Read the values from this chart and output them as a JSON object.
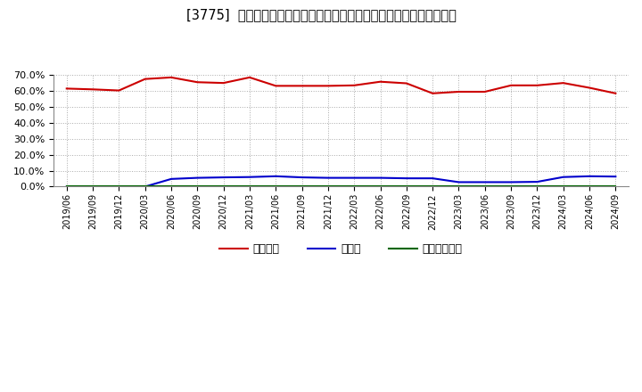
{
  "title": "[3775]  自己資本、のれん、繰延税金資産の総資産に対する比率の推移",
  "x_labels": [
    "2019/06",
    "2019/09",
    "2019/12",
    "2020/03",
    "2020/06",
    "2020/09",
    "2020/12",
    "2021/03",
    "2021/06",
    "2021/09",
    "2021/12",
    "2022/03",
    "2022/06",
    "2022/09",
    "2022/12",
    "2023/03",
    "2023/06",
    "2023/09",
    "2023/12",
    "2024/03",
    "2024/06",
    "2024/09"
  ],
  "jiko_shihon": [
    61.5,
    61.0,
    60.3,
    67.5,
    68.5,
    65.5,
    65.0,
    68.5,
    63.2,
    63.2,
    63.2,
    63.5,
    65.8,
    64.8,
    58.5,
    59.5,
    59.5,
    63.5,
    63.5,
    65.0,
    62.0,
    58.5
  ],
  "noren": [
    0.0,
    0.0,
    0.0,
    0.0,
    4.8,
    5.5,
    5.8,
    6.0,
    6.5,
    5.8,
    5.5,
    5.5,
    5.5,
    5.2,
    5.2,
    2.8,
    2.8,
    2.8,
    3.0,
    6.0,
    6.5,
    6.3
  ],
  "kurinobe_zei": [
    0.0,
    0.0,
    0.0,
    0.0,
    0.0,
    0.0,
    0.0,
    0.0,
    0.0,
    0.0,
    0.0,
    0.0,
    0.0,
    0.0,
    0.0,
    0.0,
    0.0,
    0.0,
    0.0,
    0.0,
    0.0,
    0.0
  ],
  "series_colors": [
    "#cc0000",
    "#0000cc",
    "#006600"
  ],
  "series_labels": [
    "自己資本",
    "のれん",
    "繰延税金資産"
  ],
  "ylim": [
    0,
    70
  ],
  "ytick_vals": [
    0,
    10,
    20,
    30,
    40,
    50,
    60,
    70
  ],
  "background_color": "#ffffff",
  "grid_color": "#aaaaaa",
  "title_fontsize": 10.5
}
